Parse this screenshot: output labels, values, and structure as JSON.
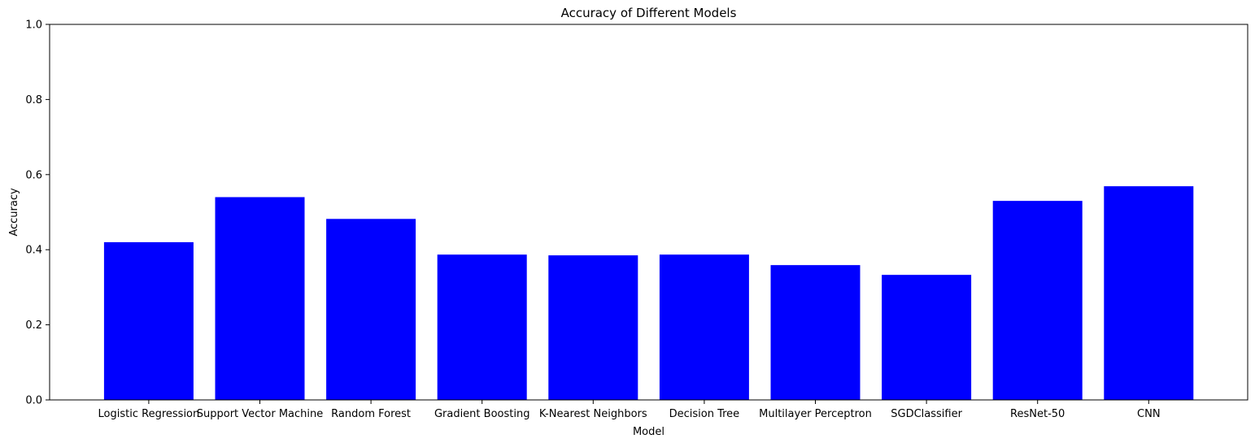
{
  "chart_data": {
    "type": "bar",
    "title": "Accuracy of Different Models",
    "xlabel": "Model",
    "ylabel": "Accuracy",
    "ylim": [
      0,
      1
    ],
    "yticks": [
      "0.0",
      "0.2",
      "0.4",
      "0.6",
      "0.8",
      "1.0"
    ],
    "categories": [
      "Logistic Regression",
      "Support Vector Machine",
      "Random Forest",
      "Gradient Boosting",
      "K-Nearest Neighbors",
      "Decision Tree",
      "Multilayer Perceptron",
      "SGDClassifier",
      "ResNet-50",
      "CNN"
    ],
    "values": [
      0.42,
      0.54,
      0.482,
      0.387,
      0.385,
      0.387,
      0.359,
      0.333,
      0.53,
      0.569
    ],
    "bar_color": "#0000ff",
    "grid": false,
    "legend": "none"
  }
}
